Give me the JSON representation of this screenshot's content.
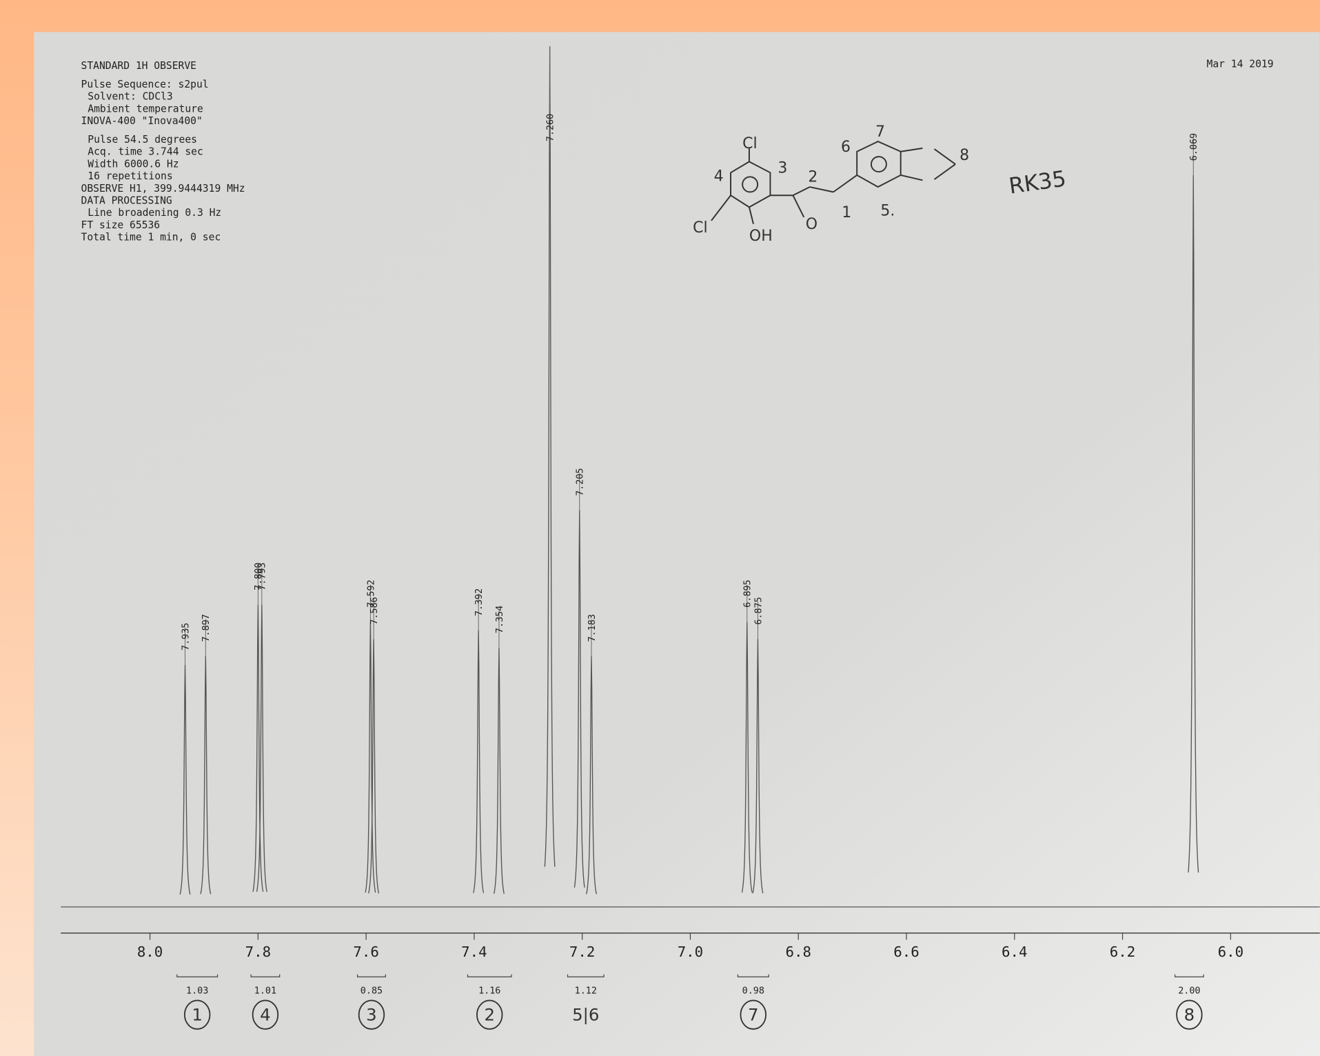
{
  "chart_data": {
    "type": "spectrum",
    "header": [
      "STANDARD 1H OBSERVE",
      "Pulse Sequence: s2pul",
      "Solvent: CDCl3",
      "Ambient temperature",
      "INOVA-400  \"Inova400\"",
      "Pulse 54.5 degrees",
      "Acq. time 3.744 sec",
      "Width 6000.6 Hz",
      "16 repetitions",
      "OBSERVE   H1, 399.9444319 MHz",
      "DATA PROCESSING",
      "Line broadening 0.3 Hz",
      "FT size 65536",
      "Total time 1 min, 0 sec"
    ],
    "date": "Mar 14 2019",
    "sample": "RK35",
    "structure_labels": [
      "Cl",
      "Cl",
      "OH",
      "O",
      "1",
      "2",
      "3",
      "4",
      "5.",
      "6",
      "7",
      "8"
    ],
    "xlim": [
      8.165,
      5.835
    ],
    "xticks": [
      {
        "value": 8,
        "label": "8.0"
      },
      7.8,
      7.6,
      7.4,
      7.2,
      {
        "value": 7,
        "label": "7.0"
      },
      6.8,
      6.6,
      6.4,
      6.2,
      {
        "value": 6,
        "label": "6.0"
      }
    ],
    "ylim": [
      0,
      100
    ],
    "color": "#555555",
    "peaks": {
      "x": [
        7.935,
        7.897,
        7.8,
        7.793,
        7.592,
        7.586,
        7.392,
        7.354,
        7.26,
        7.205,
        7.183,
        6.895,
        6.875,
        6.069
      ],
      "x_labels": [
        "7.935",
        "7.897",
        "7.800",
        "7.793",
        "7.592",
        "7.586",
        "7.392",
        "7.354",
        "7.260",
        "7.205",
        "7.183",
        "6.895",
        "6.875",
        "6.069"
      ],
      "values": [
        28,
        29,
        35,
        35,
        33,
        31,
        32,
        30,
        100,
        46,
        29,
        33,
        31,
        85
      ]
    },
    "integrals": {
      "x": [
        [
          7.95,
          7.875
        ],
        [
          7.813,
          7.76
        ],
        [
          7.616,
          7.564
        ],
        [
          7.412,
          7.331
        ],
        [
          7.227,
          7.16
        ],
        [
          6.912,
          6.855
        ],
        [
          6.103,
          6.05
        ]
      ],
      "values": [
        1.03,
        1.01,
        0.85,
        1.16,
        1.12,
        0.98,
        2.0
      ],
      "value_labels": [
        "1.03",
        "1.01",
        "0.85",
        "1.16",
        "1.12",
        "0.98",
        "2.00"
      ],
      "assignments": [
        "1",
        "4",
        "3",
        "2",
        "5|6",
        "7",
        "8"
      ]
    }
  }
}
